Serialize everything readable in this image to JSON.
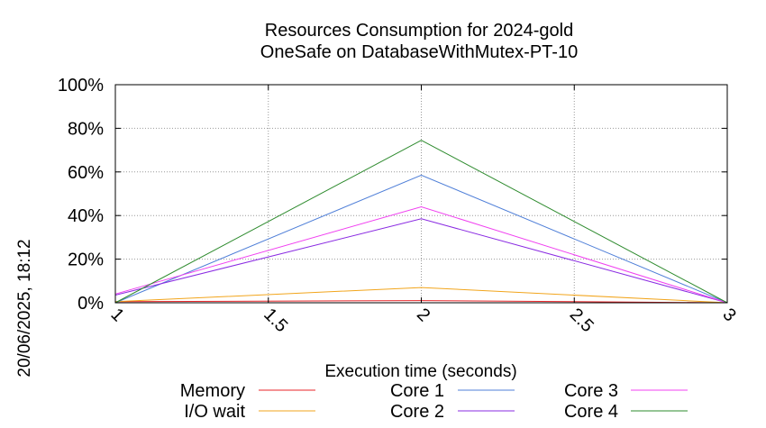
{
  "chart_data": {
    "type": "line",
    "title": [
      "Resources Consumption for 2024-gold",
      "OneSafe on DatabaseWithMutex-PT-10"
    ],
    "xlabel": "Execution time (seconds)",
    "ylabel": "",
    "side_label": "20/06/2025, 18:12",
    "xlim": [
      1,
      3
    ],
    "ylim": [
      0,
      100
    ],
    "x_ticks": [
      {
        "value": 1,
        "label": "1"
      },
      {
        "value": 1.5,
        "label": "1.5"
      },
      {
        "value": 2,
        "label": "2"
      },
      {
        "value": 2.5,
        "label": "2.5"
      },
      {
        "value": 3,
        "label": "3"
      }
    ],
    "y_ticks": [
      {
        "value": 0,
        "label": "0%"
      },
      {
        "value": 20,
        "label": "20%"
      },
      {
        "value": 40,
        "label": "40%"
      },
      {
        "value": 60,
        "label": "60%"
      },
      {
        "value": 80,
        "label": "80%"
      },
      {
        "value": 100,
        "label": "100%"
      }
    ],
    "grid": true,
    "legend_position": "bottom",
    "x": [
      1,
      2,
      3
    ],
    "series": [
      {
        "name": "Memory",
        "color": "#e8262a",
        "values": [
          0.5,
          1.0,
          0
        ]
      },
      {
        "name": "I/O wait",
        "color": "#f2a51c",
        "values": [
          0.5,
          7,
          0
        ]
      },
      {
        "name": "Core 1",
        "color": "#4f7fd8",
        "values": [
          0,
          58.5,
          0
        ]
      },
      {
        "name": "Core 2",
        "color": "#8a2be2",
        "values": [
          3.5,
          38.5,
          0
        ]
      },
      {
        "name": "Core 3",
        "color": "#f040f0",
        "values": [
          4,
          44,
          0
        ]
      },
      {
        "name": "Core 4",
        "color": "#2e8b2e",
        "values": [
          0,
          74.5,
          0
        ]
      }
    ]
  }
}
